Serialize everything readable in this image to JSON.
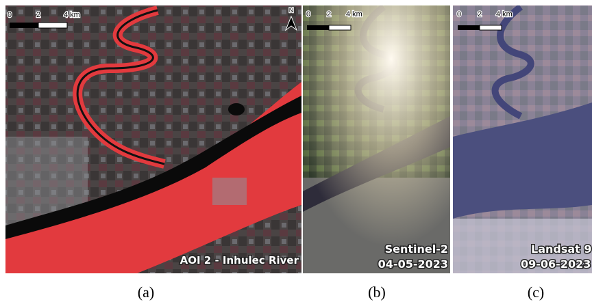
{
  "panels": [
    {
      "scale_labels": [
        "0",
        "2",
        "4 km"
      ],
      "north": "N",
      "overlay": [
        "AOI 2 - Inhulec River"
      ],
      "caption": "(a)"
    },
    {
      "scale_labels": [
        "0",
        "2",
        "4 km"
      ],
      "overlay": [
        "Sentinel-2",
        "04-05-2023"
      ],
      "caption": "(b)"
    },
    {
      "scale_labels": [
        "0",
        "2",
        "4 km"
      ],
      "overlay": [
        "Landsat 9",
        "09-06-2023"
      ],
      "caption": "(c)"
    }
  ]
}
